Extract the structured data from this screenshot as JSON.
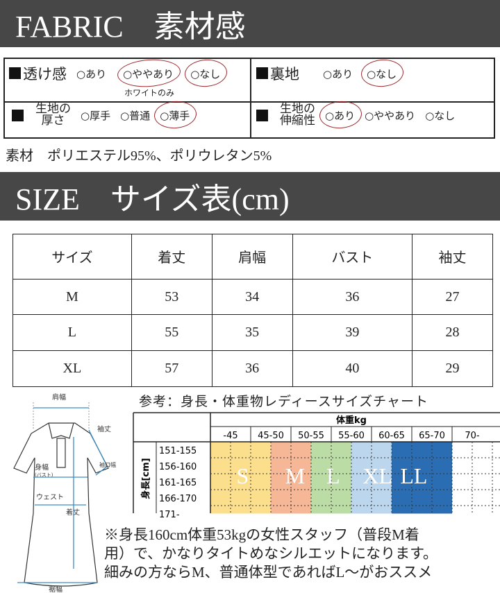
{
  "fabric_header": "FABRIC　素材感",
  "fabric": {
    "transparency": {
      "label": "透け感",
      "options": [
        "○あり",
        "○ややあり",
        "○なし"
      ],
      "selected": [
        1,
        2
      ],
      "note": "ホワイトのみ"
    },
    "lining": {
      "label": "裏地",
      "options": [
        "○あり",
        "○なし"
      ],
      "selected": [
        1
      ]
    },
    "thickness": {
      "label_1": "生地の",
      "label_2": "厚さ",
      "options": [
        "○厚手",
        "○普通",
        "○薄手"
      ],
      "selected": [
        2
      ]
    },
    "stretch": {
      "label_1": "生地の",
      "label_2": "伸縮性",
      "options": [
        "○あり",
        "○ややあり",
        "○なし"
      ],
      "selected": [
        0
      ]
    }
  },
  "material": "素材　ポリエステル95%、ポリウレタン5%",
  "size_header": "SIZE　サイズ表(cm)",
  "size_table": {
    "headers": [
      "サイズ",
      "着丈",
      "肩幅",
      "バスト",
      "袖丈"
    ],
    "rows": [
      [
        "M",
        "53",
        "34",
        "36",
        "27"
      ],
      [
        "L",
        "55",
        "35",
        "39",
        "28"
      ],
      [
        "XL",
        "57",
        "36",
        "40",
        "29"
      ]
    ]
  },
  "diagram": {
    "shoulder": "肩幅",
    "sleeve": "袖丈",
    "cuff": "袖口幅",
    "bust": "身幅",
    "bust_sub": "(バスト)",
    "waist": "ウェスト",
    "length": "着丈",
    "hem": "裾幅"
  },
  "chart_data": {
    "type": "table",
    "title": "参考：身長・体重物レディースサイズチャート",
    "col_header": "体重kg",
    "row_header": "身長[cm]",
    "columns": [
      "-45",
      "45-50",
      "50-55",
      "55-60",
      "60-65",
      "65-70",
      "70-"
    ],
    "rows": [
      "151-155",
      "156-160",
      "161-165",
      "166-170",
      "171-"
    ],
    "bands": [
      {
        "size": "S",
        "from": "-45",
        "to": "45-50 (first half)",
        "color": "#fcdf8c"
      },
      {
        "size": "M",
        "from": "45-50 (second half)",
        "to": "50-55 (first half)",
        "color": "#f5b796"
      },
      {
        "size": "L",
        "from": "50-55 (second half)",
        "to": "55-60 (first half)",
        "color": "#bcdca6"
      },
      {
        "size": "XL",
        "from": "55-60 (second half)",
        "to": "60-65 (first half)",
        "color": "#bcd6ee"
      },
      {
        "size": "LL",
        "from": "60-65 (second half)",
        "to": "65-70",
        "color": "#2b6db3"
      }
    ]
  },
  "note": [
    "※身長160cm体重53kgの女性スタッフ（普段M着",
    "用）で、かなりタイトめなシルエットになります。",
    "細みの方ならM、普通体型であればL～がおススメ"
  ],
  "colors": {
    "header_bar": "#474747",
    "circle": "#a0262b"
  }
}
